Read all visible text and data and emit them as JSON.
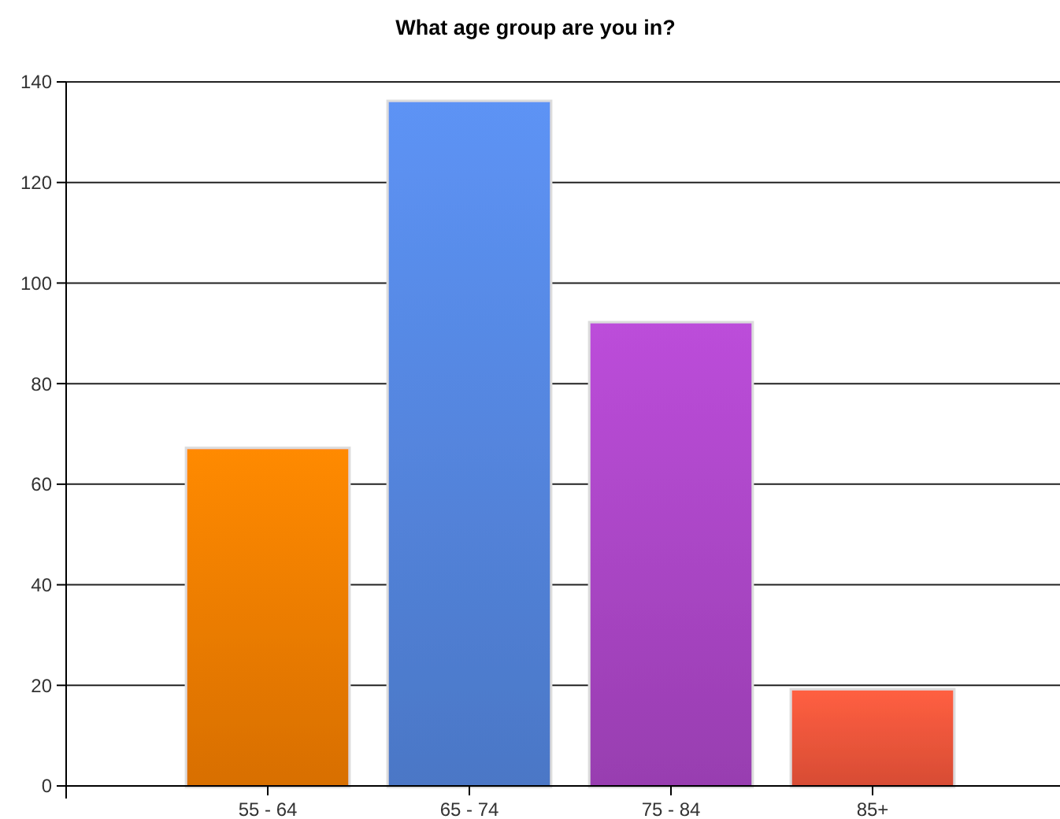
{
  "chart_data": {
    "type": "bar",
    "title": "What age group are you in?",
    "categories": [
      "55 - 64",
      "65 - 74",
      "75 - 84",
      "85+"
    ],
    "values": [
      67,
      136,
      92,
      19
    ],
    "colors": [
      "#f07c00",
      "#5484dc",
      "#a945c4",
      "#ef553a"
    ],
    "ylim": [
      0,
      140
    ],
    "yticks": [
      0,
      20,
      40,
      60,
      80,
      100,
      120,
      140
    ],
    "grid": "y"
  }
}
